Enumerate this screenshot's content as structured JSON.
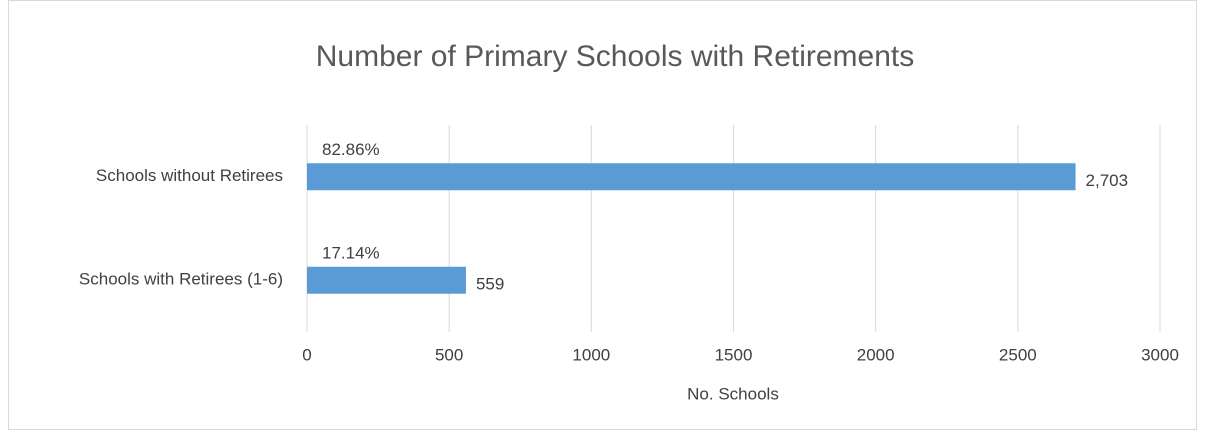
{
  "chart_data": {
    "type": "barh",
    "title": "Number of Primary Schools with Retirements",
    "categories": [
      "Schools without Retirees",
      "Schools with Retirees (1-6)"
    ],
    "values": [
      2703,
      559
    ],
    "value_labels": [
      "2,703",
      "559"
    ],
    "annotations": [
      "82.86%",
      "17.14%"
    ],
    "color": "#5b9bd5",
    "xlim": [
      0,
      3000
    ],
    "xticks": [
      0,
      500,
      1000,
      1500,
      2000,
      2500,
      3000
    ],
    "xlabel": "No. Schools",
    "grid": true
  }
}
